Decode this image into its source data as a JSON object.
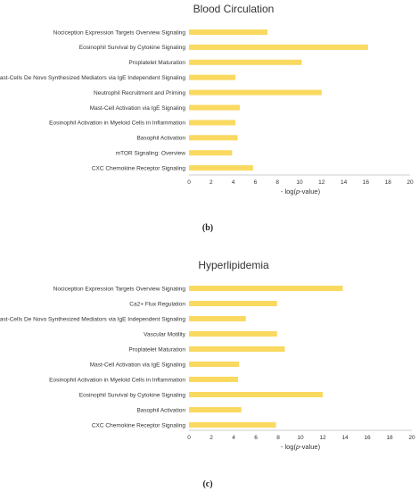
{
  "chart_data": [
    {
      "type": "bar",
      "orientation": "horizontal",
      "title": "Blood Circulation",
      "panel_label": "(b)",
      "xlabel_prefix": "- log(",
      "xlabel_italic": "p",
      "xlabel_suffix": "-value)",
      "xlim": [
        0,
        20
      ],
      "xticks": [
        "0",
        "2",
        "4",
        "6",
        "8",
        "10",
        "12",
        "14",
        "16",
        "18",
        "20"
      ],
      "grid": false,
      "bar_color": "#FAD961",
      "categories": [
        "Nociception Expression Targets Overview Signaling",
        "Eosinophil Survival by Cytokine Signaling",
        "Proplatelet Maturation",
        "Mast-Cells De Novo Synthesized Mediators via IgE Independent Signaling",
        "Neutrophil Recruitment and Priming",
        "Mast-Cell Activation via IgE Signaling",
        "Eosinophil Activation in Myeloid Cells in Inflammation",
        "Basophil Activation",
        "mTOR Signaling: Overview",
        "CXC Chemokine Receptor Signaling"
      ],
      "values": [
        7.1,
        16.2,
        10.2,
        4.2,
        12.0,
        4.6,
        4.2,
        4.4,
        3.9,
        5.8
      ]
    },
    {
      "type": "bar",
      "orientation": "horizontal",
      "title": "Hyperlipidemia",
      "panel_label": "(c)",
      "xlabel_prefix": "- log(",
      "xlabel_italic": "p",
      "xlabel_suffix": "-value)",
      "xlim": [
        0,
        20
      ],
      "xticks": [
        "0",
        "2",
        "4",
        "6",
        "8",
        "10",
        "12",
        "14",
        "16",
        "18",
        "20"
      ],
      "grid": false,
      "bar_color": "#FAD961",
      "categories": [
        "Nociception Expression Targets Overview Signaling",
        "Ca2+ Flux Regulation",
        "Mast-Cells De Novo Synthesized Mediators via IgE Independent Signaling",
        "Vascular Motility",
        "Proplatelet Maturation",
        "Mast-Cell Activation via IgE Signaling",
        "Eosinophil Activation in Myeloid Cells in Inflammation",
        "Eosinophil Survival by Cytokine Signaling",
        "Basophil Activation",
        "CXC Chemokine Receptor Signaling"
      ],
      "values": [
        13.8,
        7.9,
        5.1,
        7.9,
        8.6,
        4.5,
        4.4,
        12.0,
        4.7,
        7.8
      ]
    }
  ]
}
